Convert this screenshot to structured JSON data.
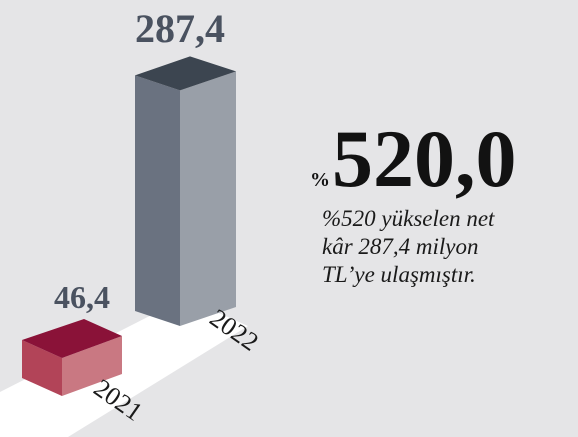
{
  "chart_data": {
    "type": "bar3d",
    "categories": [
      "2021",
      "2022"
    ],
    "values": [
      46.4,
      287.4
    ],
    "value_labels": [
      "46,4",
      "287,4"
    ],
    "colors": [
      {
        "top": "#8a1238",
        "front": "#b24458",
        "side": "#c97882"
      },
      {
        "top": "#3c4550",
        "front": "#6a7280",
        "side": "#999fa8"
      }
    ],
    "highlight": {
      "unit": "%",
      "text": "520,0"
    },
    "caption": [
      "%520 yükselen net",
      "kâr 287,4 milyon",
      "TL’ye ulaşmıştır."
    ]
  }
}
